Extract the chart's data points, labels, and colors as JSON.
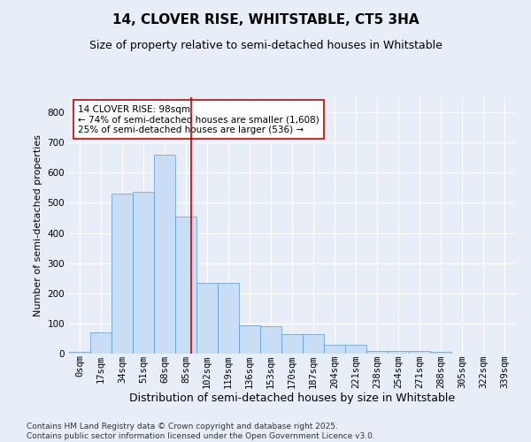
{
  "title1": "14, CLOVER RISE, WHITSTABLE, CT5 3HA",
  "title2": "Size of property relative to semi-detached houses in Whitstable",
  "xlabel": "Distribution of semi-detached houses by size in Whitstable",
  "ylabel": "Number of semi-detached properties",
  "bin_labels": [
    "0sqm",
    "17sqm",
    "34sqm",
    "51sqm",
    "68sqm",
    "85sqm",
    "102sqm",
    "119sqm",
    "136sqm",
    "153sqm",
    "170sqm",
    "187sqm",
    "204sqm",
    "221sqm",
    "238sqm",
    "254sqm",
    "271sqm",
    "288sqm",
    "305sqm",
    "322sqm",
    "339sqm"
  ],
  "bar_values": [
    5,
    70,
    530,
    535,
    660,
    455,
    235,
    235,
    95,
    90,
    65,
    65,
    30,
    30,
    10,
    10,
    10,
    5,
    0,
    0,
    0
  ],
  "bar_color": "#c9ddf5",
  "bar_edge_color": "#5b9bd5",
  "vline_x": 5.76,
  "vline_color": "#cc0000",
  "annotation_text": "14 CLOVER RISE: 98sqm\n← 74% of semi-detached houses are smaller (1,608)\n25% of semi-detached houses are larger (536) →",
  "annotation_box_color": "#ffffff",
  "annotation_box_edge": "#cc0000",
  "ylim": [
    0,
    850
  ],
  "yticks": [
    0,
    100,
    200,
    300,
    400,
    500,
    600,
    700,
    800
  ],
  "footer": "Contains HM Land Registry data © Crown copyright and database right 2025.\nContains public sector information licensed under the Open Government Licence v3.0.",
  "bg_color": "#e8eef8",
  "plot_bg_color": "#e8eef8",
  "grid_color": "#ffffff",
  "title1_fontsize": 11,
  "title2_fontsize": 9,
  "xlabel_fontsize": 9,
  "ylabel_fontsize": 8,
  "tick_fontsize": 7.5,
  "footer_fontsize": 6.5
}
